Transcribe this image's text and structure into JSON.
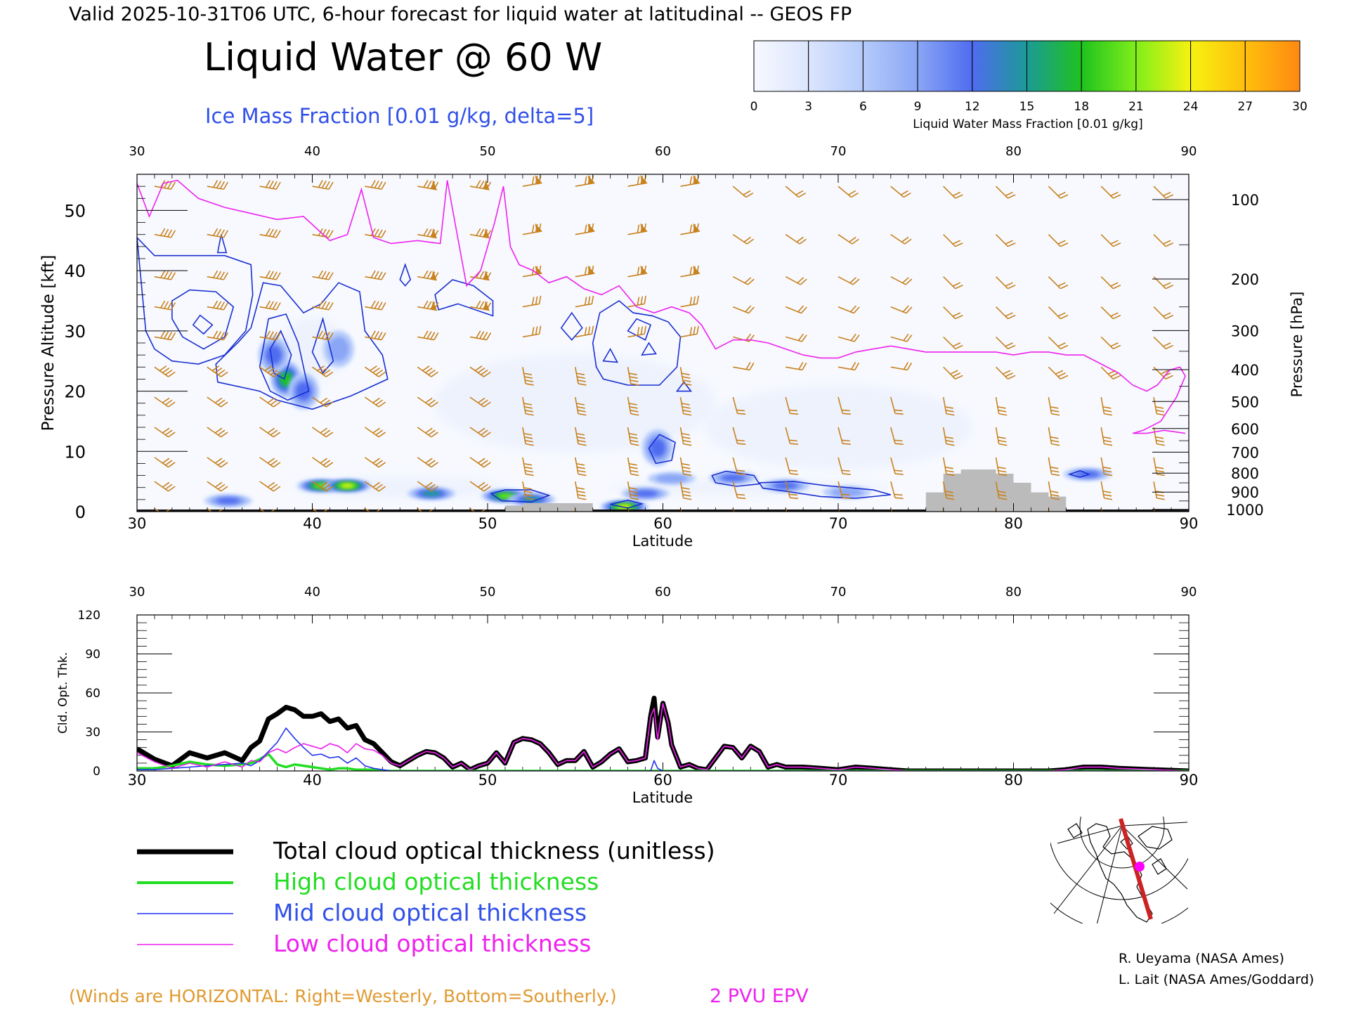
{
  "header": {
    "valid_line": "Valid 2025-10-31T06 UTC, 6-hour forecast for liquid water at latitudinal -- GEOS FP",
    "title": "Liquid Water @ 60 W",
    "ice_contour_label": "Ice Mass Fraction [0.01 g/kg, delta=5]"
  },
  "colorbar": {
    "label": "Liquid Water Mass Fraction [0.01 g/kg]",
    "ticks": [
      "0",
      "3",
      "6",
      "9",
      "12",
      "15",
      "18",
      "21",
      "24",
      "27",
      "30"
    ],
    "colors": [
      "#f7f9ff",
      "#dbe5fd",
      "#b5cbfb",
      "#8aa6f5",
      "#4f6cf0",
      "#1c9a97",
      "#1fc21f",
      "#80ee1a",
      "#f6f211",
      "#ffbf0d",
      "#ff8912",
      "#ff3b10"
    ]
  },
  "cross_section": {
    "x_ticks": [
      "30",
      "40",
      "50",
      "60",
      "70",
      "80",
      "90"
    ],
    "xlabel": "Latitude",
    "ylabel": "Pressure Altitude [kft]",
    "y_ticks": [
      "0",
      "10",
      "20",
      "30",
      "40",
      "50"
    ],
    "right_label": "Pressure [hPa]",
    "pressure_ticks": [
      "100",
      "200",
      "300",
      "400",
      "500",
      "600",
      "700",
      "800",
      "900",
      "1000"
    ]
  },
  "optical_panel": {
    "x_ticks": [
      "30",
      "40",
      "50",
      "60",
      "70",
      "80",
      "90"
    ],
    "xlabel": "Latitude",
    "ylabel": "Cld. Opt. Thk.",
    "y_ticks": [
      "0",
      "30",
      "60",
      "90",
      "120"
    ]
  },
  "legend": {
    "items": [
      {
        "label": "Total cloud optical thickness (unitless)",
        "color": "#000000"
      },
      {
        "label": "High cloud optical thickness",
        "color": "#22dd22"
      },
      {
        "label": "Mid cloud optical thickness",
        "color": "#2233ee"
      },
      {
        "label": "Low cloud optical thickness",
        "color": "#ee22ee"
      }
    ]
  },
  "footer": {
    "winds_note": "(Winds are HORIZONTAL: Right=Westerly, Bottom=Southerly.)",
    "pv_label": "2 PVU EPV",
    "credit_1": "R. Ueyama (NASA Ames)",
    "credit_2": "L. Lait (NASA Ames/Goddard)"
  },
  "colors": {
    "wind_barbs": "#c8821e",
    "pv_line": "#ee22ee",
    "ice_contour": "#1a2fd0",
    "terrain": "#bbbbbb",
    "note_text": "#e09a30"
  },
  "chart_data": [
    {
      "type": "heatmap",
      "title": "Liquid Water @ 60 W",
      "xlabel": "Latitude",
      "ylabel": "Pressure Altitude [kft]",
      "xlim": [
        30,
        90
      ],
      "ylim": [
        0,
        56
      ],
      "liquid_water_patches": [
        {
          "lat": 38.5,
          "kft": 22,
          "value": 16
        },
        {
          "lat": 37.8,
          "kft": 26,
          "value": 9
        },
        {
          "lat": 39.5,
          "kft": 20,
          "value": 9
        },
        {
          "lat": 41.5,
          "kft": 27,
          "value": 6
        },
        {
          "lat": 40.5,
          "kft": 4.3,
          "value": 20
        },
        {
          "lat": 42.0,
          "kft": 4.3,
          "value": 21
        },
        {
          "lat": 35.2,
          "kft": 1.8,
          "value": 9
        },
        {
          "lat": 46.8,
          "kft": 3.0,
          "value": 12
        },
        {
          "lat": 51.0,
          "kft": 2.6,
          "value": 18
        },
        {
          "lat": 52.5,
          "kft": 2.0,
          "value": 12
        },
        {
          "lat": 57.8,
          "kft": 0.8,
          "value": 21
        },
        {
          "lat": 59.7,
          "kft": 10.6,
          "value": 10
        },
        {
          "lat": 59.0,
          "kft": 3.0,
          "value": 9
        },
        {
          "lat": 60.5,
          "kft": 5.5,
          "value": 6
        },
        {
          "lat": 64.0,
          "kft": 5.6,
          "value": 10
        },
        {
          "lat": 67.0,
          "kft": 4.3,
          "value": 9
        },
        {
          "lat": 70.5,
          "kft": 3.2,
          "value": 6
        },
        {
          "lat": 84.2,
          "kft": 6.2,
          "value": 9
        }
      ],
      "pv_2pvu_line": {
        "name": "2 PVU EPV",
        "lat": [
          30,
          30.7,
          31.5,
          32.3,
          33.5,
          35,
          36.5,
          38,
          39.5,
          41,
          42,
          42.8,
          43.5,
          44.5,
          46,
          47.3,
          47.7,
          48.2,
          48.8,
          49.6,
          50.4,
          50.9,
          51.3,
          51.8,
          52.6,
          53.5,
          54.5,
          55.5,
          56.5,
          57.5,
          58.5,
          59.5,
          60.5,
          61.5,
          62.2,
          63,
          64,
          65,
          66,
          67,
          68,
          69,
          70,
          71,
          72,
          73,
          74,
          75,
          76,
          77,
          78,
          79,
          80,
          81,
          82,
          83,
          84,
          85,
          86,
          86.8,
          87.6,
          88.2,
          88.9,
          89.5,
          89.8,
          89.3,
          88.4,
          87.4,
          86.8,
          87.6,
          88.6,
          89.8
        ],
        "kft": [
          54.5,
          49,
          54.5,
          55,
          52,
          50.5,
          49.5,
          48.5,
          49,
          45,
          46,
          53.5,
          45.5,
          44.5,
          45,
          44.5,
          55,
          47,
          37.5,
          40,
          48,
          54,
          44,
          41,
          40,
          38,
          39,
          37,
          36,
          37.5,
          34,
          33,
          34,
          33,
          31,
          27,
          28.5,
          28.5,
          28,
          27,
          26,
          25.5,
          25.5,
          26.5,
          27,
          27.5,
          27,
          26.5,
          26.5,
          26.5,
          26.5,
          26.5,
          26,
          26.5,
          26.5,
          26,
          26,
          24.5,
          23,
          21,
          20,
          21,
          23.5,
          24,
          22.5,
          19,
          15,
          13.5,
          13,
          13,
          13.5,
          13
        ]
      },
      "terrain_kft": {
        "lat": [
          50,
          51,
          52,
          53,
          54,
          55,
          56,
          74.5,
          75,
          76,
          77,
          78,
          79,
          80,
          81,
          82,
          83
        ],
        "kft": [
          0,
          1.0,
          1.4,
          1.4,
          1.4,
          1.4,
          0,
          0,
          3.2,
          6.3,
          7.0,
          7.0,
          6.3,
          4.8,
          3.2,
          2.5,
          0
        ]
      }
    },
    {
      "type": "line",
      "xlabel": "Latitude",
      "ylabel": "Cld. Opt. Thk.",
      "xlim": [
        30,
        90
      ],
      "ylim": [
        0,
        120
      ],
      "x": [
        30,
        31,
        32,
        33,
        34,
        35,
        36,
        36.5,
        37,
        37.5,
        38,
        38.5,
        39,
        39.5,
        40,
        40.5,
        41,
        41.5,
        42,
        42.5,
        43,
        43.5,
        44,
        44.5,
        45,
        46,
        46.5,
        47,
        47.5,
        48,
        48.5,
        49,
        49.5,
        50,
        50.5,
        51,
        51.5,
        52,
        52.5,
        53,
        53.5,
        54,
        54.5,
        55,
        55.5,
        56,
        56.5,
        57,
        57.5,
        58,
        58.5,
        59,
        59.3,
        59.5,
        59.7,
        60,
        60.3,
        60.5,
        61,
        61.5,
        62,
        62.5,
        63,
        63.5,
        64,
        64.5,
        65,
        65.5,
        66,
        66.5,
        67,
        68,
        69,
        70,
        71,
        72,
        73,
        74,
        76,
        78,
        80,
        82,
        83,
        84,
        85,
        86,
        88,
        90
      ],
      "series": [
        {
          "name": "Total cloud optical thickness (unitless)",
          "values": [
            17,
            9,
            4,
            14,
            10,
            14,
            8,
            18,
            23,
            40,
            44,
            49,
            47,
            42,
            42,
            44,
            38,
            40,
            33,
            35,
            24,
            21,
            14,
            7,
            4,
            12,
            15,
            14,
            10,
            3,
            6,
            1,
            4,
            6,
            14,
            6,
            22,
            25,
            24,
            21,
            14,
            5,
            8,
            8,
            15,
            3,
            7,
            13,
            17,
            7,
            8,
            10,
            42,
            56,
            26,
            52,
            37,
            20,
            3,
            5,
            2,
            1,
            10,
            19,
            18,
            10,
            19,
            15,
            3,
            5,
            3,
            3,
            2,
            1,
            3,
            2,
            1,
            0,
            0,
            0,
            0,
            0,
            1,
            3,
            3,
            2,
            1,
            0
          ]
        },
        {
          "name": "High cloud optical thickness",
          "values": [
            2,
            2,
            4,
            7,
            5,
            4,
            5,
            6,
            9,
            13,
            5,
            3,
            5,
            4,
            3,
            2,
            1,
            2,
            2,
            1,
            1,
            1,
            0,
            0,
            0,
            0,
            0,
            0,
            0,
            0,
            0,
            0,
            0,
            0,
            0,
            0,
            0,
            0,
            0,
            0,
            0,
            0,
            0,
            0,
            0,
            0,
            0,
            0,
            0,
            0,
            0,
            0,
            0,
            0,
            0,
            0,
            0,
            0,
            0,
            0,
            0,
            0,
            0,
            0,
            0,
            0,
            0,
            0,
            0,
            0,
            0,
            0,
            0,
            0,
            0,
            0,
            0,
            0,
            0,
            0,
            0,
            0,
            0,
            0,
            0,
            0,
            0,
            0
          ]
        },
        {
          "name": "Mid cloud optical thickness",
          "values": [
            1,
            1,
            2,
            3,
            4,
            5,
            6,
            4,
            8,
            15,
            22,
            33,
            25,
            18,
            12,
            13,
            10,
            11,
            6,
            10,
            4,
            2,
            1,
            0,
            0,
            0,
            0,
            0,
            0,
            0,
            0,
            0,
            0,
            0,
            0,
            0,
            0,
            0,
            0,
            0,
            0,
            0,
            0,
            0,
            0,
            0,
            0,
            0,
            0,
            0,
            0,
            0,
            0,
            8,
            2,
            0,
            0,
            0,
            0,
            0,
            0,
            0,
            0,
            0,
            0,
            0,
            0,
            0,
            0,
            0,
            0,
            0,
            0,
            0,
            0,
            0,
            0,
            0,
            0,
            0,
            0,
            0,
            0,
            0,
            0,
            0,
            0,
            0
          ]
        },
        {
          "name": "Low cloud optical thickness",
          "values": [
            14,
            7,
            2,
            6,
            3,
            7,
            3,
            8,
            7,
            14,
            17,
            14,
            18,
            21,
            19,
            17,
            21,
            19,
            14,
            21,
            17,
            16,
            12,
            6,
            4,
            12,
            15,
            14,
            10,
            3,
            6,
            1,
            4,
            6,
            14,
            6,
            22,
            25,
            24,
            21,
            14,
            5,
            8,
            8,
            15,
            3,
            7,
            13,
            17,
            7,
            8,
            10,
            42,
            48,
            24,
            52,
            37,
            20,
            3,
            5,
            2,
            1,
            10,
            19,
            18,
            10,
            19,
            15,
            3,
            5,
            3,
            3,
            2,
            1,
            3,
            2,
            1,
            0,
            0,
            0,
            0,
            0,
            1,
            3,
            3,
            2,
            1,
            0
          ]
        }
      ]
    }
  ]
}
